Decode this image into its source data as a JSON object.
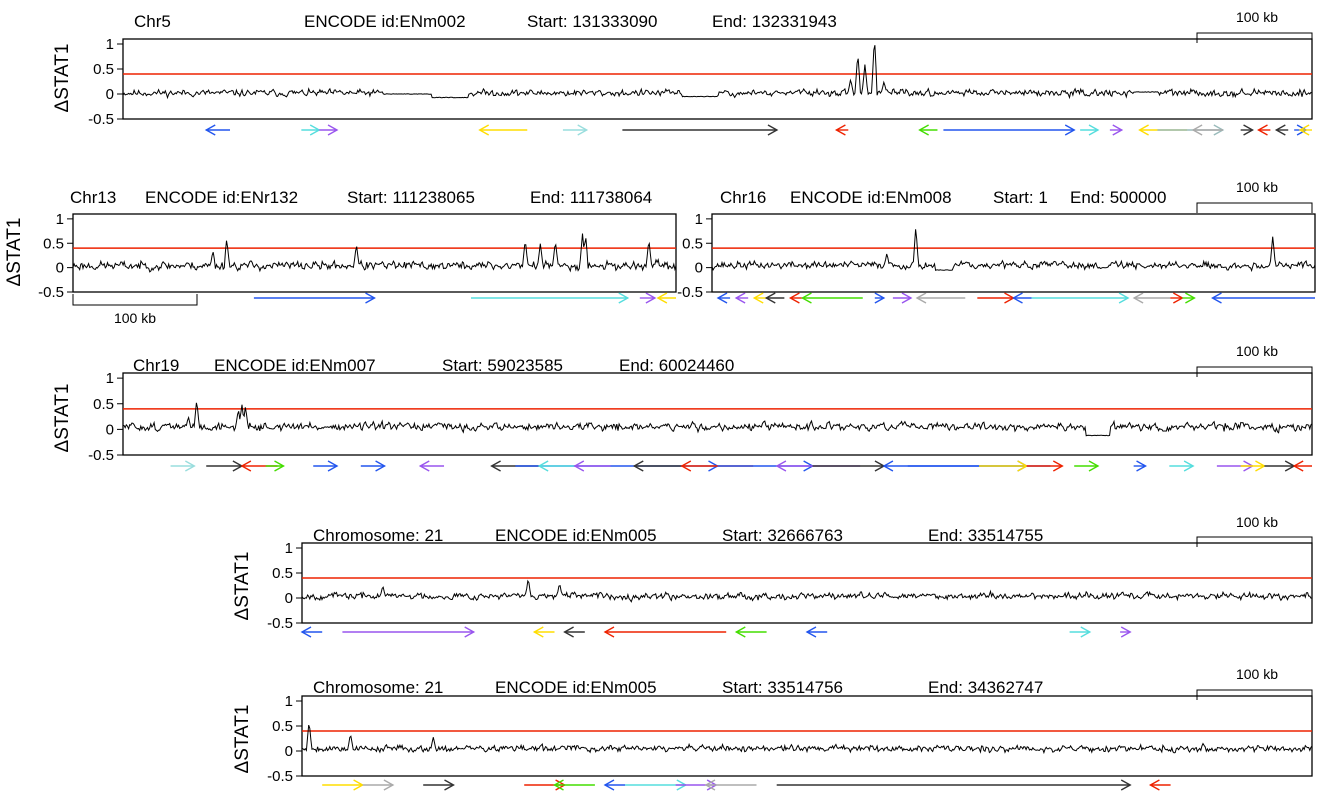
{
  "chart_data": [
    {
      "type": "line",
      "region": {
        "chromosome": "Chr5",
        "encode_id": "ENCODE id:ENm002",
        "start": "Start: 131333090",
        "end": "End: 132331943"
      },
      "ylabel": "ΔSTAT1",
      "yticks": [
        "1",
        "0.5",
        "0",
        "-0.5"
      ],
      "ylim": [
        -0.5,
        1.1
      ],
      "threshold": 0.4,
      "scale_bar": "100 kb",
      "scale_pos": "top-right",
      "baseline": 0.02,
      "noise": 0.06,
      "seed": 11,
      "flat_regions": [
        [
          0.22,
          0.26,
          0.0
        ],
        [
          0.26,
          0.29,
          -0.07
        ],
        [
          0.47,
          0.5,
          -0.05
        ],
        [
          0.85,
          0.87,
          0.04
        ]
      ],
      "peaks": [
        [
          0.618,
          0.82
        ],
        [
          0.624,
          0.6
        ],
        [
          0.632,
          1.15
        ],
        [
          0.612,
          0.3
        ],
        [
          0.64,
          0.25
        ]
      ],
      "genes": [
        {
          "x1": 0.07,
          "x2": 0.09,
          "dir": "L",
          "color": "#2255ee"
        },
        {
          "x1": 0.15,
          "x2": 0.165,
          "dir": "R",
          "color": "#55dddd"
        },
        {
          "x1": 0.165,
          "x2": 0.18,
          "dir": "R",
          "color": "#9955ee"
        },
        {
          "x1": 0.3,
          "x2": 0.34,
          "dir": "L",
          "color": "#ffdd00"
        },
        {
          "x1": 0.37,
          "x2": 0.39,
          "dir": "R",
          "color": "#99dddd"
        },
        {
          "x1": 0.42,
          "x2": 0.55,
          "dir": "R",
          "color": "#333333"
        },
        {
          "x1": 0.6,
          "x2": 0.61,
          "dir": "L",
          "color": "#ee2200"
        },
        {
          "x1": 0.67,
          "x2": 0.685,
          "dir": "L",
          "color": "#44dd00"
        },
        {
          "x1": 0.69,
          "x2": 0.8,
          "dir": "R",
          "color": "#2255ee"
        },
        {
          "x1": 0.805,
          "x2": 0.82,
          "dir": "R",
          "color": "#55dddd"
        },
        {
          "x1": 0.83,
          "x2": 0.84,
          "dir": "R",
          "color": "#9955ee"
        },
        {
          "x1": 0.855,
          "x2": 0.895,
          "dir": "L",
          "color": "#ffdd00"
        },
        {
          "x1": 0.87,
          "x2": 0.925,
          "dir": "R",
          "color": "#99bbbb"
        },
        {
          "x1": 0.9,
          "x2": 0.925,
          "dir": "L",
          "color": "#aaaaaa"
        },
        {
          "x1": 0.94,
          "x2": 0.95,
          "dir": "R",
          "color": "#333333"
        },
        {
          "x1": 0.955,
          "x2": 0.965,
          "dir": "L",
          "color": "#ee2200"
        },
        {
          "x1": 0.97,
          "x2": 0.98,
          "dir": "L",
          "color": "#333333"
        },
        {
          "x1": 0.985,
          "x2": 0.995,
          "dir": "R",
          "color": "#2255ee"
        },
        {
          "x1": 0.99,
          "x2": 1.0,
          "dir": "L",
          "color": "#ffdd00"
        }
      ]
    },
    {
      "type": "line",
      "region": {
        "chromosome": "Chr13",
        "encode_id": "ENCODE id:ENr132",
        "start": "Start: 111238065",
        "end": "End: 111738064"
      },
      "ylabel": "ΔSTAT1",
      "yticks": [
        "1",
        "0.5",
        "0",
        "-0.5"
      ],
      "ylim": [
        -0.5,
        1.1
      ],
      "threshold": 0.4,
      "scale_bar": "100 kb",
      "scale_pos": "bottom-left",
      "baseline": 0.04,
      "noise": 0.08,
      "seed": 23,
      "flat_regions": [],
      "peaks": [
        [
          0.255,
          0.6
        ],
        [
          0.232,
          0.35
        ],
        [
          0.47,
          0.48
        ],
        [
          0.75,
          0.58
        ],
        [
          0.775,
          0.5
        ],
        [
          0.8,
          0.55
        ],
        [
          0.845,
          0.7
        ],
        [
          0.85,
          0.68
        ],
        [
          0.955,
          0.58
        ]
      ],
      "genes": [
        {
          "x1": 0.3,
          "x2": 0.5,
          "dir": "R",
          "color": "#2255ee"
        },
        {
          "x1": 0.66,
          "x2": 0.92,
          "dir": "R",
          "color": "#55dddd"
        },
        {
          "x1": 0.94,
          "x2": 0.965,
          "dir": "R",
          "color": "#9955ee"
        },
        {
          "x1": 0.97,
          "x2": 1.0,
          "dir": "L",
          "color": "#ffdd00"
        }
      ]
    },
    {
      "type": "line",
      "region": {
        "chromosome": "Chr16",
        "encode_id": "ENCODE id:ENm008",
        "start": "Start: 1",
        "end": "End: 500000"
      },
      "ylabel": "",
      "yticks": [
        "1",
        "0.5",
        "0",
        "-0.5"
      ],
      "ylim": [
        -0.5,
        1.1
      ],
      "threshold": 0.4,
      "scale_bar": "100 kb",
      "scale_pos": "top-right",
      "baseline": 0.05,
      "noise": 0.07,
      "seed": 37,
      "flat_regions": [
        [
          0.37,
          0.4,
          -0.05
        ]
      ],
      "peaks": [
        [
          0.338,
          0.85
        ],
        [
          0.93,
          0.65
        ],
        [
          0.29,
          0.3
        ]
      ],
      "genes": [
        {
          "x1": 0.01,
          "x2": 0.03,
          "dir": "L",
          "color": "#2255ee"
        },
        {
          "x1": 0.04,
          "x2": 0.06,
          "dir": "L",
          "color": "#9955ee"
        },
        {
          "x1": 0.07,
          "x2": 0.09,
          "dir": "L",
          "color": "#ffdd00"
        },
        {
          "x1": 0.09,
          "x2": 0.12,
          "dir": "L",
          "color": "#333333"
        },
        {
          "x1": 0.13,
          "x2": 0.15,
          "dir": "L",
          "color": "#ee2200"
        },
        {
          "x1": 0.15,
          "x2": 0.25,
          "dir": "L",
          "color": "#44dd00"
        },
        {
          "x1": 0.27,
          "x2": 0.285,
          "dir": "R",
          "color": "#2255ee"
        },
        {
          "x1": 0.3,
          "x2": 0.33,
          "dir": "R",
          "color": "#9955ee"
        },
        {
          "x1": 0.34,
          "x2": 0.42,
          "dir": "L",
          "color": "#aaaaaa"
        },
        {
          "x1": 0.44,
          "x2": 0.5,
          "dir": "R",
          "color": "#ee2200"
        },
        {
          "x1": 0.5,
          "x2": 0.53,
          "dir": "L",
          "color": "#2255ee"
        },
        {
          "x1": 0.53,
          "x2": 0.69,
          "dir": "R",
          "color": "#55dddd"
        },
        {
          "x1": 0.7,
          "x2": 0.76,
          "dir": "L",
          "color": "#aaaaaa"
        },
        {
          "x1": 0.76,
          "x2": 0.78,
          "dir": "R",
          "color": "#ee2200"
        },
        {
          "x1": 0.78,
          "x2": 0.8,
          "dir": "R",
          "color": "#44dd00"
        },
        {
          "x1": 0.83,
          "x2": 1.0,
          "dir": "L",
          "color": "#2255ee"
        }
      ]
    },
    {
      "type": "line",
      "region": {
        "chromosome": "Chr19",
        "encode_id": "ENCODE id:ENm007",
        "start": "Start: 59023585",
        "end": "End: 60024460"
      },
      "ylabel": "ΔSTAT1",
      "yticks": [
        "1",
        "0.5",
        "0",
        "-0.5"
      ],
      "ylim": [
        -0.5,
        1.1
      ],
      "threshold": 0.4,
      "scale_bar": "100 kb",
      "scale_pos": "top-right",
      "baseline": 0.05,
      "noise": 0.07,
      "seed": 51,
      "flat_regions": [
        [
          0.81,
          0.83,
          -0.12
        ]
      ],
      "peaks": [
        [
          0.062,
          0.58
        ],
        [
          0.1,
          0.5
        ],
        [
          0.103,
          0.45
        ],
        [
          0.097,
          0.4
        ],
        [
          0.055,
          0.25
        ]
      ],
      "genes": [
        {
          "x1": 0.04,
          "x2": 0.06,
          "dir": "R",
          "color": "#99dddd"
        },
        {
          "x1": 0.07,
          "x2": 0.1,
          "dir": "R",
          "color": "#333333"
        },
        {
          "x1": 0.1,
          "x2": 0.13,
          "dir": "L",
          "color": "#ee2200"
        },
        {
          "x1": 0.12,
          "x2": 0.135,
          "dir": "R",
          "color": "#44dd00"
        },
        {
          "x1": 0.16,
          "x2": 0.18,
          "dir": "R",
          "color": "#2255ee"
        },
        {
          "x1": 0.2,
          "x2": 0.22,
          "dir": "R",
          "color": "#2255ee"
        },
        {
          "x1": 0.25,
          "x2": 0.27,
          "dir": "L",
          "color": "#9955ee"
        },
        {
          "x1": 0.31,
          "x2": 0.35,
          "dir": "L",
          "color": "#333333"
        },
        {
          "x1": 0.33,
          "x2": 0.5,
          "dir": "R",
          "color": "#2255ee"
        },
        {
          "x1": 0.35,
          "x2": 0.38,
          "dir": "L",
          "color": "#55dddd"
        },
        {
          "x1": 0.38,
          "x2": 0.41,
          "dir": "L",
          "color": "#9955ee"
        },
        {
          "x1": 0.43,
          "x2": 0.47,
          "dir": "L",
          "color": "#333333"
        },
        {
          "x1": 0.47,
          "x2": 0.53,
          "dir": "L",
          "color": "#ee2200"
        },
        {
          "x1": 0.5,
          "x2": 0.58,
          "dir": "R",
          "color": "#2255ee"
        },
        {
          "x1": 0.55,
          "x2": 0.62,
          "dir": "L",
          "color": "#9955ee"
        },
        {
          "x1": 0.58,
          "x2": 0.64,
          "dir": "R",
          "color": "#333333"
        },
        {
          "x1": 0.64,
          "x2": 0.78,
          "dir": "L",
          "color": "#2255ee"
        },
        {
          "x1": 0.66,
          "x2": 0.76,
          "dir": "R",
          "color": "#2255ee"
        },
        {
          "x1": 0.72,
          "x2": 0.76,
          "dir": "R",
          "color": "#ffdd00"
        },
        {
          "x1": 0.76,
          "x2": 0.79,
          "dir": "R",
          "color": "#ee2200"
        },
        {
          "x1": 0.8,
          "x2": 0.82,
          "dir": "R",
          "color": "#44dd00"
        },
        {
          "x1": 0.85,
          "x2": 0.86,
          "dir": "R",
          "color": "#2255ee"
        },
        {
          "x1": 0.88,
          "x2": 0.9,
          "dir": "R",
          "color": "#55dddd"
        },
        {
          "x1": 0.92,
          "x2": 0.95,
          "dir": "R",
          "color": "#9955ee"
        },
        {
          "x1": 0.94,
          "x2": 0.96,
          "dir": "R",
          "color": "#ffdd00"
        },
        {
          "x1": 0.96,
          "x2": 0.985,
          "dir": "R",
          "color": "#333333"
        },
        {
          "x1": 0.985,
          "x2": 1.0,
          "dir": "L",
          "color": "#ee2200"
        }
      ]
    },
    {
      "type": "line",
      "region": {
        "chromosome": "Chromosome: 21",
        "encode_id": "ENCODE id:ENm005",
        "start": "Start: 32666763",
        "end": "End: 33514755"
      },
      "ylabel": "ΔSTAT1",
      "yticks": [
        "1",
        "0.5",
        "0",
        "-0.5"
      ],
      "ylim": [
        -0.5,
        1.1
      ],
      "threshold": 0.4,
      "scale_bar": "100 kb",
      "scale_pos": "top-right",
      "baseline": 0.04,
      "noise": 0.06,
      "seed": 67,
      "flat_regions": [],
      "peaks": [
        [
          0.224,
          0.4
        ],
        [
          0.255,
          0.3
        ],
        [
          0.08,
          0.25
        ]
      ],
      "genes": [
        {
          "x1": 0.0,
          "x2": 0.02,
          "dir": "L",
          "color": "#2255ee"
        },
        {
          "x1": 0.04,
          "x2": 0.17,
          "dir": "R",
          "color": "#9955ee"
        },
        {
          "x1": 0.23,
          "x2": 0.25,
          "dir": "L",
          "color": "#ffdd00"
        },
        {
          "x1": 0.26,
          "x2": 0.28,
          "dir": "L",
          "color": "#333333"
        },
        {
          "x1": 0.3,
          "x2": 0.42,
          "dir": "L",
          "color": "#ee2200"
        },
        {
          "x1": 0.43,
          "x2": 0.46,
          "dir": "L",
          "color": "#44dd00"
        },
        {
          "x1": 0.5,
          "x2": 0.52,
          "dir": "L",
          "color": "#2255ee"
        },
        {
          "x1": 0.76,
          "x2": 0.78,
          "dir": "R",
          "color": "#55dddd"
        },
        {
          "x1": 0.81,
          "x2": 0.82,
          "dir": "R",
          "color": "#9955ee"
        }
      ]
    },
    {
      "type": "line",
      "region": {
        "chromosome": "Chromosome: 21",
        "encode_id": "ENCODE id:ENm005",
        "start": "Start: 33514756",
        "end": "End: 34362747"
      },
      "ylabel": "ΔSTAT1",
      "yticks": [
        "1",
        "0.5",
        "0",
        "-0.5"
      ],
      "ylim": [
        -0.5,
        1.1
      ],
      "threshold": 0.4,
      "scale_bar": "100 kb",
      "scale_pos": "top-right",
      "baseline": 0.05,
      "noise": 0.06,
      "seed": 79,
      "flat_regions": [],
      "peaks": [
        [
          0.007,
          0.6
        ],
        [
          0.048,
          0.35
        ],
        [
          0.13,
          0.28
        ]
      ],
      "genes": [
        {
          "x1": 0.02,
          "x2": 0.06,
          "dir": "R",
          "color": "#ffdd00"
        },
        {
          "x1": 0.06,
          "x2": 0.09,
          "dir": "R",
          "color": "#aaaaaa"
        },
        {
          "x1": 0.12,
          "x2": 0.15,
          "dir": "R",
          "color": "#333333"
        },
        {
          "x1": 0.22,
          "x2": 0.26,
          "dir": "R",
          "color": "#ee2200"
        },
        {
          "x1": 0.25,
          "x2": 0.29,
          "dir": "L",
          "color": "#44dd00"
        },
        {
          "x1": 0.3,
          "x2": 0.32,
          "dir": "L",
          "color": "#2255ee"
        },
        {
          "x1": 0.32,
          "x2": 0.38,
          "dir": "R",
          "color": "#55dddd"
        },
        {
          "x1": 0.37,
          "x2": 0.41,
          "dir": "R",
          "color": "#9955ee"
        },
        {
          "x1": 0.4,
          "x2": 0.45,
          "dir": "L",
          "color": "#aaaaaa"
        },
        {
          "x1": 0.47,
          "x2": 0.82,
          "dir": "R",
          "color": "#333333"
        },
        {
          "x1": 0.84,
          "x2": 0.86,
          "dir": "L",
          "color": "#ee2200"
        }
      ]
    }
  ],
  "colors": {
    "threshold": "#ee2200",
    "trace": "#000000",
    "frame": "#000000"
  }
}
